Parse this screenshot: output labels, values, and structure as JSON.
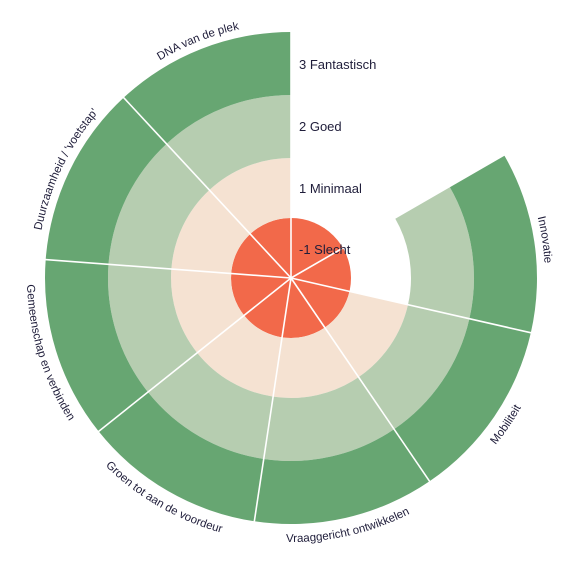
{
  "chart_data": {
    "type": "radial-bar",
    "levels": [
      {
        "value": -1,
        "label": "-1 Slecht"
      },
      {
        "value": 1,
        "label": "1 Minimaal"
      },
      {
        "value": 2,
        "label": "2 Goed"
      },
      {
        "value": 3,
        "label": "3 Fantastisch"
      }
    ],
    "categories": [
      {
        "name": "Innovatie",
        "value": 3,
        "start_level": 2
      },
      {
        "name": "Mobiliteit",
        "value": 3
      },
      {
        "name": "Vraaggericht ontwikkelen",
        "value": 3
      },
      {
        "name": "Groen tot aan de voordeur",
        "value": 3
      },
      {
        "name": "Gemeenschap en verbinden",
        "value": 3
      },
      {
        "name": "Duurzaamheid / 'voetstap'",
        "value": 3
      },
      {
        "name": "DNA van de plek",
        "value": 3
      }
    ],
    "colors": {
      "level_-1": "#f2694a",
      "level_1": "#f5e2d2",
      "level_2": "#b6cdb0",
      "level_3": "#67a672",
      "divider": "#ffffff",
      "text": "#1f1d3a"
    }
  }
}
